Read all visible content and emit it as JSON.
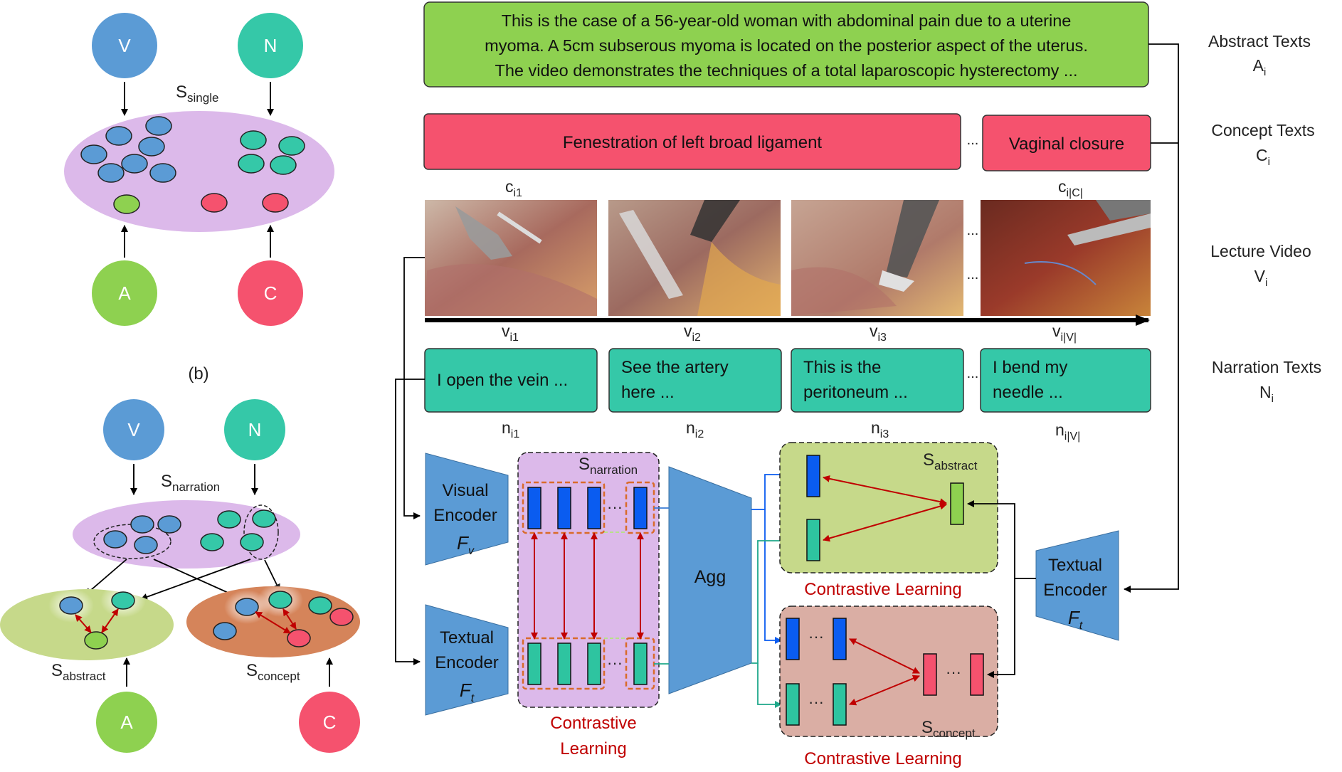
{
  "colors": {
    "visual": "#5b9bd5",
    "narration": "#35c8a8",
    "abstract": "#8ed150",
    "concept": "#f5526e",
    "space_single": "#dcb9ea",
    "space_abstract": "#c6d98a",
    "space_concept": "#d5845a",
    "red_text": "#c00000",
    "blue_vec": "#0a5cf0",
    "arrow_red": "#c00000"
  },
  "left_top": {
    "nodes": {
      "v": "V",
      "n": "N",
      "a": "A",
      "c": "C"
    },
    "space_label": {
      "base": "S",
      "sub": "single"
    }
  },
  "panel_b_label": "(b)",
  "left_bottom": {
    "nodes": {
      "v": "V",
      "n": "N",
      "a": "A",
      "c": "C"
    },
    "narration_label": {
      "base": "S",
      "sub": "narration"
    },
    "abstract_label": {
      "base": "S",
      "sub": "abstract"
    },
    "concept_label": {
      "base": "S",
      "sub": "concept"
    }
  },
  "abstract_text_lines": [
    "This is the case of a 56-year-old woman with abdominal pain due to a uterine",
    "myoma. A 5cm subserous myoma is located on the posterior aspect of the uterus.",
    "The video demonstrates the techniques of a total laparoscopic hysterectomy ..."
  ],
  "concepts": {
    "first": "Fenestration of left broad ligament",
    "last": "Vaginal closure",
    "first_label": {
      "base": "c",
      "sub": "i1"
    },
    "last_label": {
      "base": "c",
      "sub": "i|C|"
    }
  },
  "video_frames": [
    {
      "label": {
        "base": "v",
        "sub": "i1"
      }
    },
    {
      "label": {
        "base": "v",
        "sub": "i2"
      }
    },
    {
      "label": {
        "base": "v",
        "sub": "i3"
      }
    },
    {
      "label": {
        "base": "v",
        "sub": "i|V|"
      }
    }
  ],
  "narrations": [
    {
      "lines": [
        "I open the vein ..."
      ],
      "label": {
        "base": "n",
        "sub": "i1"
      }
    },
    {
      "lines": [
        "See the artery",
        "here ..."
      ],
      "label": {
        "base": "n",
        "sub": "i2"
      }
    },
    {
      "lines": [
        "This is the",
        "peritoneum ..."
      ],
      "label": {
        "base": "n",
        "sub": "i3"
      }
    },
    {
      "lines": [
        "I bend my",
        "needle ..."
      ],
      "label": {
        "base": "n",
        "sub": "i|V|"
      }
    }
  ],
  "ellipsis": "...",
  "dots": "···",
  "right_labels": [
    {
      "title": "Abstract Texts",
      "sym": {
        "base": "A",
        "sub": "i"
      }
    },
    {
      "title": "Concept Texts",
      "sym": {
        "base": "C",
        "sub": "i"
      }
    },
    {
      "title": "Lecture Video",
      "sym": {
        "base": "V",
        "sub": "i"
      }
    },
    {
      "title": "Narration Texts",
      "sym": {
        "base": "N",
        "sub": "i"
      }
    }
  ],
  "visual_encoder": {
    "lines": [
      "Visual",
      "Encoder"
    ],
    "symbol": {
      "base": "F",
      "sub": "v"
    }
  },
  "textual_encoder_left": {
    "lines": [
      "Textual",
      "Encoder"
    ],
    "symbol": {
      "base": "F",
      "sub": "t"
    }
  },
  "textual_encoder_right": {
    "lines": [
      "Textual",
      "Encoder"
    ],
    "symbol": {
      "base": "F",
      "sub": "t"
    }
  },
  "narration_space_label": {
    "base": "S",
    "sub": "narration"
  },
  "contrastive_narration": [
    "Contrastive",
    "Learning"
  ],
  "agg": "Agg",
  "abstract_space_label": {
    "base": "S",
    "sub": "abstract"
  },
  "concept_space_label": {
    "base": "S",
    "sub": "concept"
  },
  "contrastive_abstract": "Contrastive Learning",
  "contrastive_concept": "Contrastive Learning"
}
